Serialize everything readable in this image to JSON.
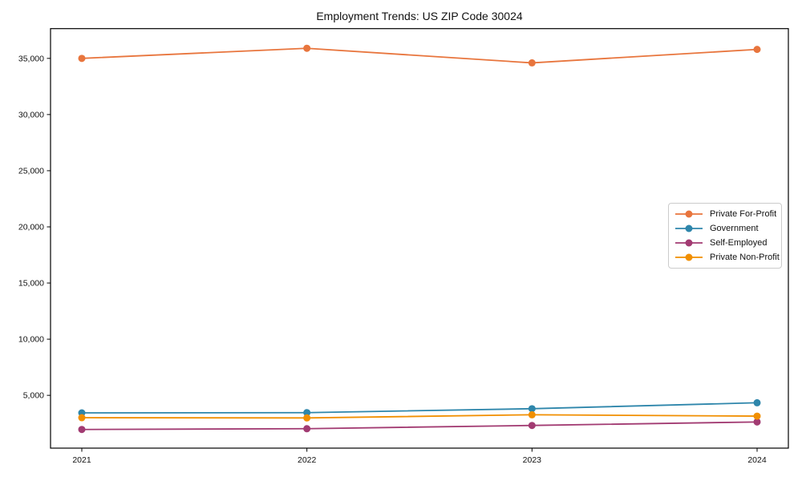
{
  "chart_data": {
    "type": "line",
    "title": "Employment Trends: US ZIP Code 30024",
    "categories": [
      "2021",
      "2022",
      "2023",
      "2024"
    ],
    "series": [
      {
        "name": "Private For-Profit",
        "color": "#E8753D",
        "values": [
          35000,
          35900,
          34600,
          35800
        ]
      },
      {
        "name": "Government",
        "color": "#2E86AB",
        "values": [
          3440,
          3460,
          3810,
          4340
        ]
      },
      {
        "name": "Self-Employed",
        "color": "#A23B72",
        "values": [
          1960,
          2030,
          2320,
          2630
        ]
      },
      {
        "name": "Private Non-Profit",
        "color": "#F18F01",
        "values": [
          3010,
          2990,
          3270,
          3150
        ]
      }
    ],
    "xlabel": "",
    "ylabel": "",
    "ylim": [
      300,
      37650
    ],
    "yticks": [
      5000,
      10000,
      15000,
      20000,
      25000,
      30000,
      35000
    ],
    "ytick_labels": [
      "5,000",
      "10,000",
      "15,000",
      "20,000",
      "25,000",
      "30,000",
      "35,000"
    ],
    "grid": false,
    "legend_position": "center right",
    "marker": "circle",
    "axis_color": "#000000",
    "background_color": "#ffffff"
  }
}
